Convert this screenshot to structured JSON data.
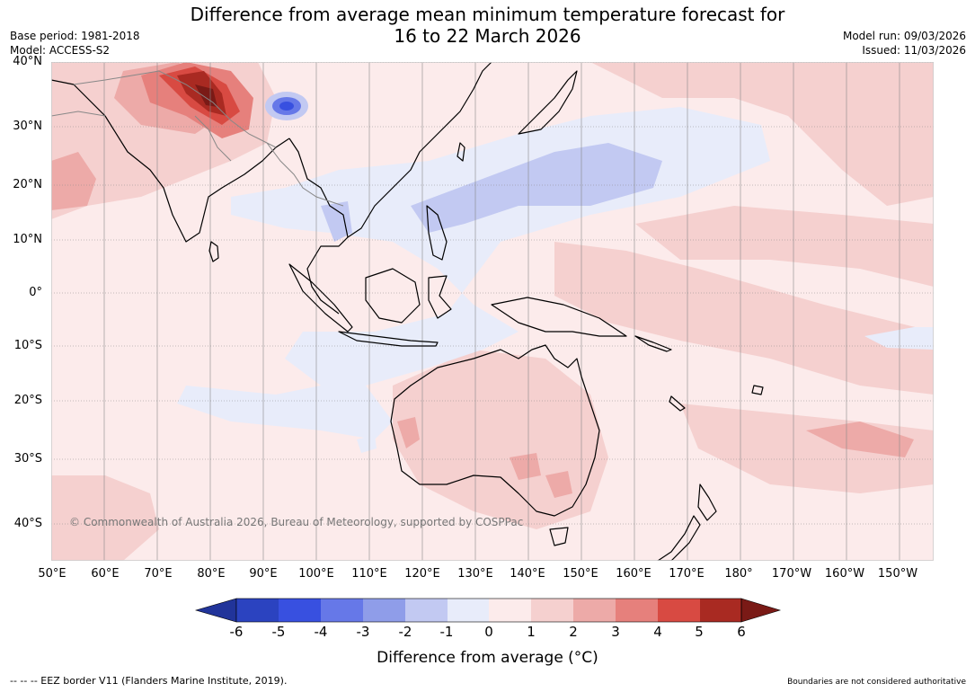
{
  "title": {
    "line1": "Difference from average mean minimum temperature forecast for",
    "line2": "16 to 22 March 2026"
  },
  "meta": {
    "base_period": "Base period: 1981-2018",
    "model": "Model: ACCESS-S2",
    "model_run": "Model run: 09/03/2026",
    "issued": "Issued: 11/03/2026"
  },
  "map": {
    "lat_labels": [
      "40°N",
      "30°N",
      "20°N",
      "10°N",
      "0°",
      "10°S",
      "20°S",
      "30°S",
      "40°S"
    ],
    "lon_labels": [
      "50°E",
      "60°E",
      "70°E",
      "80°E",
      "90°E",
      "100°E",
      "110°E",
      "120°E",
      "130°E",
      "140°E",
      "150°E",
      "160°E",
      "170°E",
      "180°",
      "170°W",
      "160°W",
      "150°W"
    ],
    "copyright": "© Commonwealth of Australia 2026, Bureau of Meteorology, supported by COSPPac"
  },
  "colorbar": {
    "title": "Difference from average (°C)",
    "ticks": [
      "-6",
      "-5",
      "-4",
      "-3",
      "-2",
      "-1",
      "0",
      "1",
      "2",
      "3",
      "4",
      "5",
      "6"
    ],
    "colors": [
      "#21349a",
      "#2b43c0",
      "#3850e0",
      "#6678e8",
      "#8f9de9",
      "#c2c9f2",
      "#e8ecfa",
      "#fcebeb",
      "#f5d0cf",
      "#edaaa8",
      "#e6807c",
      "#d84a42",
      "#a92a22",
      "#7a1a16"
    ]
  },
  "footer": {
    "legend": "--  --  -- EEZ border V11 (Flanders Marine Institute, 2019).",
    "note": "Boundaries are not considered authoritative"
  }
}
